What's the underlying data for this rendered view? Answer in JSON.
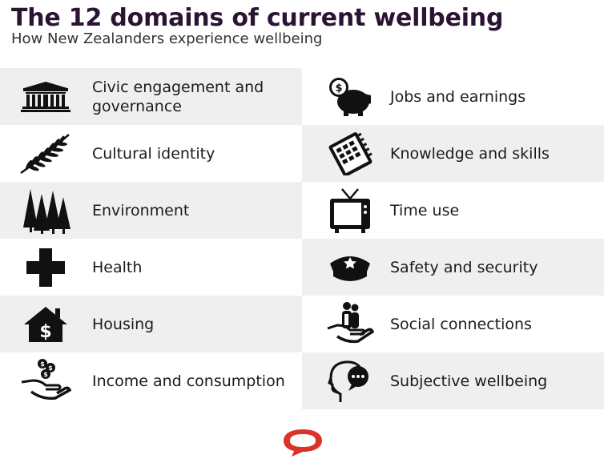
{
  "header": {
    "title": "The 12 domains of current wellbeing",
    "subtitle": "How New Zealanders experience wellbeing"
  },
  "rows": [
    {
      "left": {
        "label": "Civic engagement and governance",
        "icon": "government-building-icon"
      },
      "right": {
        "label": "Jobs and earnings",
        "icon": "piggy-bank-icon"
      }
    },
    {
      "left": {
        "label": "Cultural identity",
        "icon": "silver-fern-icon"
      },
      "right": {
        "label": "Knowledge and skills",
        "icon": "notebook-icon"
      }
    },
    {
      "left": {
        "label": "Environment",
        "icon": "forest-icon"
      },
      "right": {
        "label": "Time use",
        "icon": "television-icon"
      }
    },
    {
      "left": {
        "label": "Health",
        "icon": "health-cross-icon"
      },
      "right": {
        "label": "Safety and security",
        "icon": "police-cap-icon"
      }
    },
    {
      "left": {
        "label": "Housing",
        "icon": "house-dollar-icon"
      },
      "right": {
        "label": "Social connections",
        "icon": "people-in-hand-icon"
      }
    },
    {
      "left": {
        "label": "Income and consumption",
        "icon": "coins-in-hand-icon"
      },
      "right": {
        "label": "Subjective wellbeing",
        "icon": "head-speech-icon"
      }
    }
  ],
  "colors": {
    "title": "#2a1333",
    "band": "#efefef",
    "logo": "#d8352a"
  }
}
